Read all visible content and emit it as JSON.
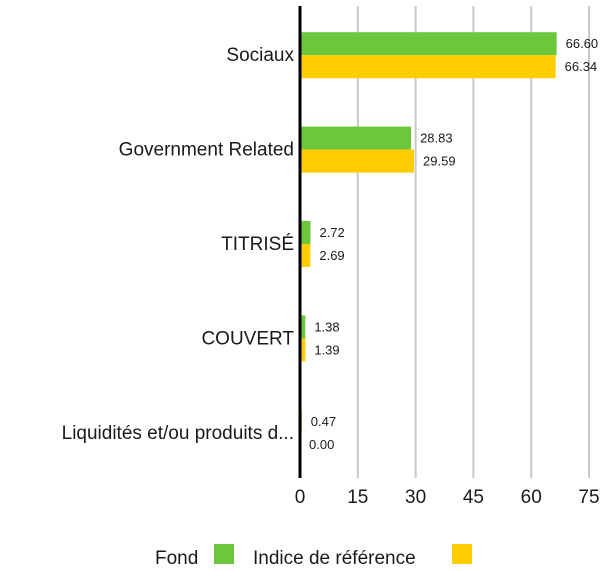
{
  "chart_data": {
    "type": "bar",
    "orientation": "horizontal",
    "categories": [
      "Sociaux",
      "Government Related",
      "TITRISÉ",
      "COUVERT",
      "Liquidités et/ou produits d..."
    ],
    "series": [
      {
        "name": "Fond",
        "values": [
          66.6,
          28.83,
          2.72,
          1.38,
          0.47
        ],
        "labels": [
          "66.60",
          "28.83",
          "2.72",
          "1.38",
          "0.47"
        ],
        "color": "#6cc73a"
      },
      {
        "name": "Indice de référence",
        "values": [
          66.34,
          29.59,
          2.69,
          1.39,
          0.0
        ],
        "labels": [
          "66.34",
          "29.59",
          "2.69",
          "1.39",
          "0.00"
        ],
        "color": "#ffcc00"
      }
    ],
    "xlim": [
      0,
      75
    ],
    "xticks": [
      "0",
      "15",
      "30",
      "45",
      "60",
      "75"
    ],
    "grid": true,
    "legend_position": "bottom",
    "title": "",
    "xlabel": "",
    "ylabel": ""
  }
}
